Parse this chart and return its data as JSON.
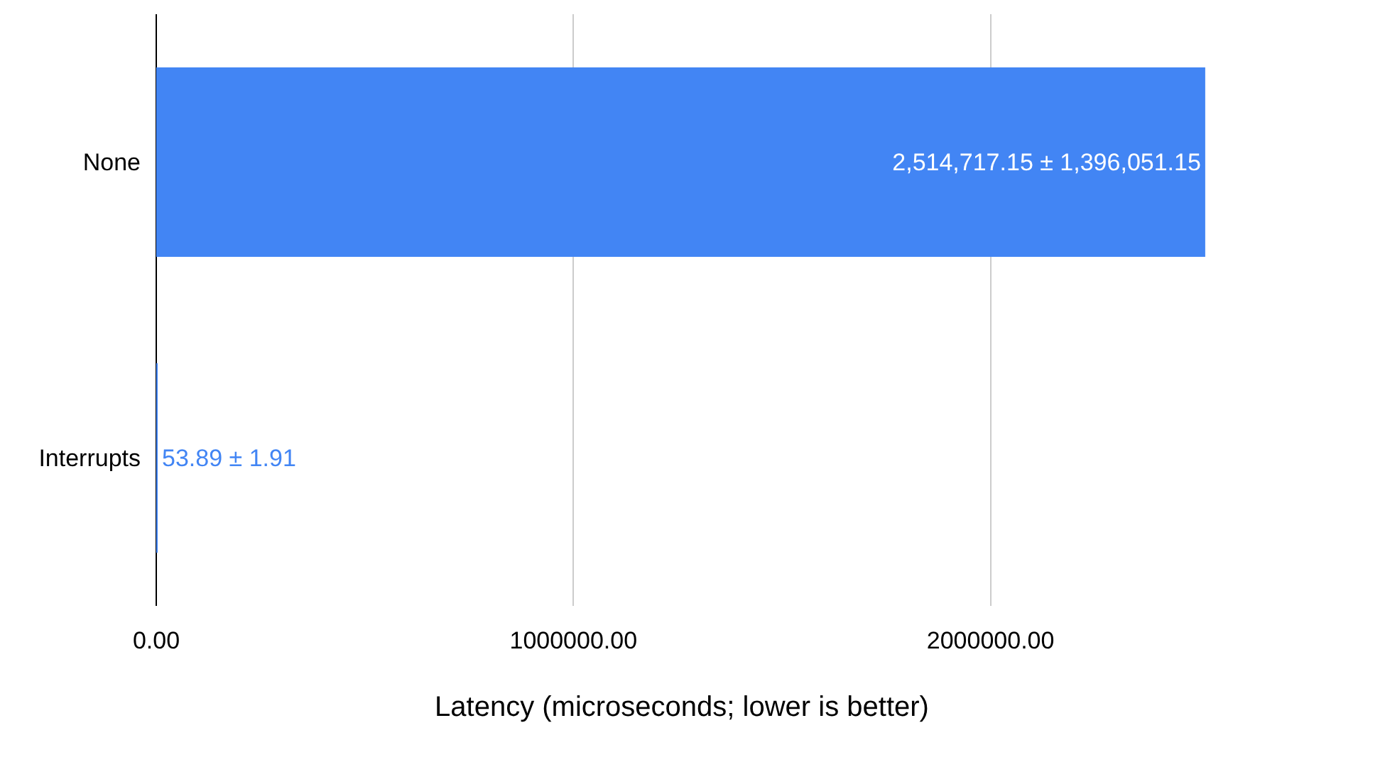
{
  "chart_data": {
    "type": "bar",
    "orientation": "horizontal",
    "xlabel": "Latency (microseconds; lower is better)",
    "categories": [
      "None",
      "Interrupts"
    ],
    "values": [
      2514717.15,
      53.89
    ],
    "value_labels": [
      "2,514,717.15 ± 1,396,051.15",
      "53.89 ± 1.91"
    ],
    "color": "#4285f4",
    "xlim": [
      0,
      2520000
    ],
    "xticks": [
      {
        "value": 0,
        "label": "0.00"
      },
      {
        "value": 1000000,
        "label": "1000000.00"
      },
      {
        "value": 2000000,
        "label": "2000000.00"
      }
    ],
    "grid": "x",
    "legend": false
  }
}
